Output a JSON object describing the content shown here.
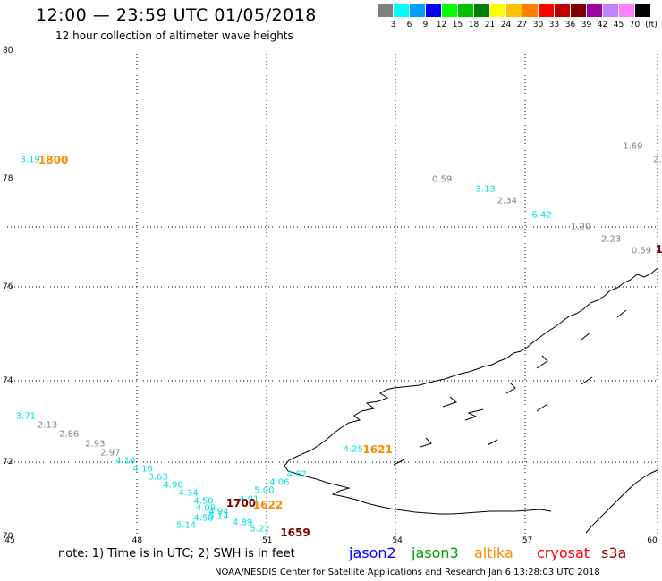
{
  "title": "12:00 — 23:59 UTC 01/05/2018",
  "subtitle": "12 hour collection of altimeter wave heights",
  "legend": {
    "unit": "(ft)",
    "items": [
      {
        "label": "3",
        "color": "#7f7f7f"
      },
      {
        "label": "6",
        "color": "#00ffff"
      },
      {
        "label": "9",
        "color": "#00a0ff"
      },
      {
        "label": "12",
        "color": "#0000ff"
      },
      {
        "label": "15",
        "color": "#00ff00"
      },
      {
        "label": "18",
        "color": "#00c000"
      },
      {
        "label": "21",
        "color": "#008000"
      },
      {
        "label": "24",
        "color": "#ffff00"
      },
      {
        "label": "27",
        "color": "#ffc000"
      },
      {
        "label": "30",
        "color": "#ff8000"
      },
      {
        "label": "33",
        "color": "#ff0000"
      },
      {
        "label": "36",
        "color": "#c00000"
      },
      {
        "label": "39",
        "color": "#800000"
      },
      {
        "label": "42",
        "color": "#a000a0"
      },
      {
        "label": "45",
        "color": "#c080ff"
      },
      {
        "label": "70",
        "color": "#ff80ff"
      },
      {
        "label": "",
        "color": "#000000"
      }
    ]
  },
  "axes": {
    "y_labels": [
      "80",
      "78",
      "76",
      "74",
      "72",
      "70"
    ],
    "x_labels": [
      "45",
      "48",
      "51",
      "54",
      "57",
      "60"
    ]
  },
  "observations": [
    {
      "value": "3.19",
      "color": "#00e0e0",
      "lon": 45.3,
      "lat": 78.3
    },
    {
      "value": "1.69",
      "color": "#808080",
      "lon": 59.2,
      "lat": 78.5
    },
    {
      "value": "2.",
      "color": "#808080",
      "lon": 59.9,
      "lat": 78.3
    },
    {
      "value": "0.59",
      "color": "#808080",
      "lon": 54.8,
      "lat": 77.98
    },
    {
      "value": "3.13",
      "color": "#00e0e0",
      "lon": 55.8,
      "lat": 77.8
    },
    {
      "value": "2.34",
      "color": "#808080",
      "lon": 56.3,
      "lat": 77.58
    },
    {
      "value": "6.42",
      "color": "#00e0e0",
      "lon": 57.1,
      "lat": 77.32
    },
    {
      "value": "1.20",
      "color": "#808080",
      "lon": 58.0,
      "lat": 77.1
    },
    {
      "value": "2.23",
      "color": "#808080",
      "lon": 58.7,
      "lat": 76.88
    },
    {
      "value": "0.59",
      "color": "#808080",
      "lon": 59.4,
      "lat": 76.66
    },
    {
      "value": "3.71",
      "color": "#00e0e0",
      "lon": 45.2,
      "lat": 73.13
    },
    {
      "value": "2.13",
      "color": "#808080",
      "lon": 45.7,
      "lat": 72.9
    },
    {
      "value": "2.86",
      "color": "#808080",
      "lon": 46.2,
      "lat": 72.68
    },
    {
      "value": "2.93",
      "color": "#808080",
      "lon": 46.8,
      "lat": 72.45
    },
    {
      "value": "2.97",
      "color": "#808080",
      "lon": 47.15,
      "lat": 72.22
    },
    {
      "value": "4.10",
      "color": "#00e0e0",
      "lon": 47.5,
      "lat": 72.02
    },
    {
      "value": "4.16",
      "color": "#00e0e0",
      "lon": 47.9,
      "lat": 71.8
    },
    {
      "value": "3.63",
      "color": "#00e0e0",
      "lon": 48.25,
      "lat": 71.58
    },
    {
      "value": "4.90",
      "color": "#00e0e0",
      "lon": 48.6,
      "lat": 71.37
    },
    {
      "value": "4.34",
      "color": "#00e0e0",
      "lon": 48.95,
      "lat": 71.15
    },
    {
      "value": "4.50",
      "color": "#00e0e0",
      "lon": 49.3,
      "lat": 70.93
    },
    {
      "value": "4.08",
      "color": "#00e0e0",
      "lon": 49.35,
      "lat": 70.75
    },
    {
      "value": "4.58",
      "color": "#00e0e0",
      "lon": 49.3,
      "lat": 70.47
    },
    {
      "value": "5.14",
      "color": "#00e0e0",
      "lon": 48.9,
      "lat": 70.3
    },
    {
      "value": "4.94",
      "color": "#00e0e0",
      "lon": 49.65,
      "lat": 70.65
    },
    {
      "value": "5.14",
      "color": "#00e0e0",
      "lon": 49.65,
      "lat": 70.52
    },
    {
      "value": "4.89",
      "color": "#00e0e0",
      "lon": 50.2,
      "lat": 70.35
    },
    {
      "value": "5.22",
      "color": "#00e0e0",
      "lon": 50.6,
      "lat": 70.2
    },
    {
      "value": "4.91",
      "color": "#00e0e0",
      "lon": 50.35,
      "lat": 71.0
    },
    {
      "value": "5.00",
      "color": "#00e0e0",
      "lon": 50.7,
      "lat": 71.22
    },
    {
      "value": "4.06",
      "color": "#00e0e0",
      "lon": 51.05,
      "lat": 71.45
    },
    {
      "value": "4.62",
      "color": "#00e0e0",
      "lon": 51.45,
      "lat": 71.67
    },
    {
      "value": "4.25",
      "color": "#00e0e0",
      "lon": 52.75,
      "lat": 72.3
    }
  ],
  "track_times": [
    {
      "value": "1800",
      "color": "#ff8c00",
      "lon": 45.72,
      "lat": 78.3
    },
    {
      "value": "1621",
      "color": "#ff8c00",
      "lon": 53.2,
      "lat": 72.3
    },
    {
      "value": "1700",
      "color": "#800000",
      "lon": 50.05,
      "lat": 70.9
    },
    {
      "value": "1622",
      "color": "#ff8c00",
      "lon": 50.67,
      "lat": 70.84
    },
    {
      "value": "1659",
      "color": "#800000",
      "lon": 51.3,
      "lat": 70.1
    },
    {
      "value": "1",
      "color": "#800000",
      "lon": 59.95,
      "lat": 76.7
    }
  ],
  "footer": {
    "note": "note:  1) Time is in UTC;  2) SWH is in feet",
    "satellites": [
      {
        "name": "jason2",
        "color": "#0000ff"
      },
      {
        "name": "jason3",
        "color": "#00a000"
      },
      {
        "name": "altika",
        "color": "#ff8c00"
      },
      {
        "name": "cryosat",
        "color": "#ff0000"
      },
      {
        "name": "s3a",
        "color": "#a00000"
      }
    ],
    "credit": "NOAA/NESDIS Center for Satellite Applications and Research    Jan  6 13:28:03 UTC 2018"
  }
}
